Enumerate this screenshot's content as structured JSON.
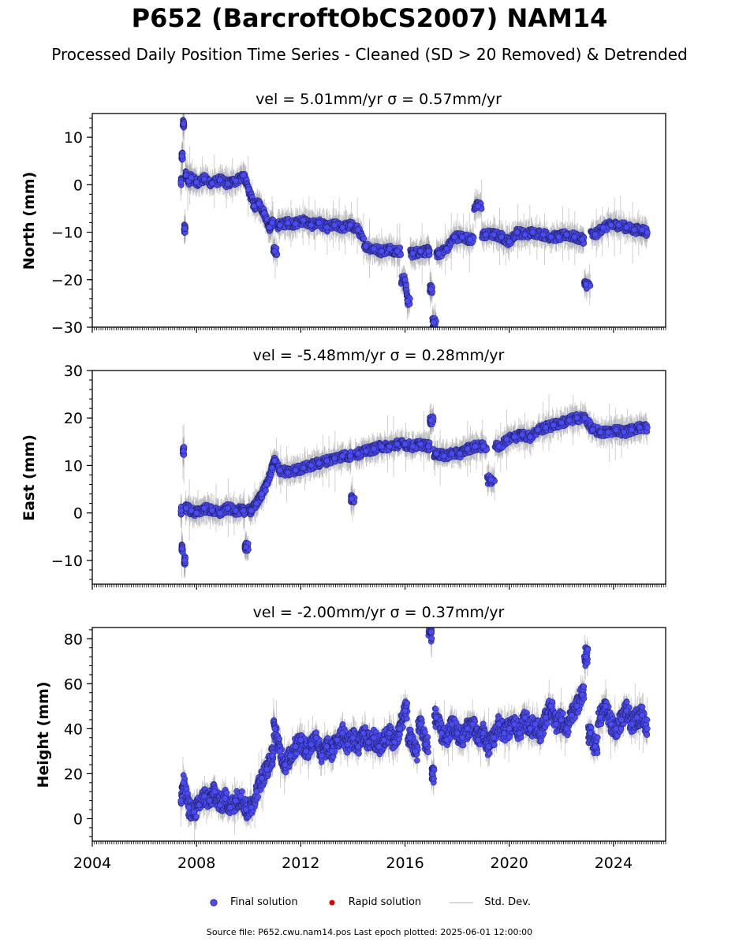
{
  "title": "P652 (BarcroftObCS2007) NAM14",
  "subtitle": "Processed Daily Position Time Series - Cleaned (SD > 20 Removed) & Detrended",
  "legend": {
    "final": "Final solution",
    "rapid": "Rapid solution",
    "std": "Std. Dev."
  },
  "footer": "Source file: P652.cwu.nam14.pos  Last epoch plotted: 2025-06-01 12:00:00",
  "colors": {
    "final": "#4b4bf5",
    "final_edge": "#1a1a55",
    "rapid": "#e00000",
    "std": "#aaaaaa"
  },
  "chart_data": [
    {
      "type": "scatter",
      "title": "vel = 5.01mm/yr   σ = 0.57mm/yr",
      "ylabel": "North (mm)",
      "xlim": [
        2004.0,
        2026.0
      ],
      "ylim": [
        -30,
        15
      ],
      "yticks": [
        -30,
        -20,
        -10,
        0,
        10
      ],
      "ytick_labels": [
        "−30",
        "−20",
        "−10",
        "0",
        "10"
      ],
      "series": [
        {
          "name": "Final solution",
          "x": [
            2007.4,
            2007.45,
            2007.5,
            2007.55,
            2007.6,
            2007.7,
            2007.8,
            2008.0,
            2008.3,
            2008.6,
            2008.9,
            2009.2,
            2009.5,
            2009.8,
            2010.0,
            2010.2,
            2010.4,
            2010.6,
            2010.8,
            2010.9,
            2011.0,
            2011.2,
            2011.5,
            2011.8,
            2012.1,
            2012.4,
            2012.7,
            2013.0,
            2013.3,
            2013.6,
            2013.9,
            2014.2,
            2014.5,
            2014.8,
            2015.1,
            2015.4,
            2015.7,
            2016.0,
            2016.1,
            2016.3,
            2016.6,
            2016.9,
            2017.0,
            2017.1,
            2017.3,
            2017.6,
            2017.9,
            2018.2,
            2018.5,
            2018.8,
            2019.1,
            2019.4,
            2019.7,
            2020.0,
            2020.3,
            2020.6,
            2020.9,
            2021.3,
            2021.6,
            2021.9,
            2022.2,
            2022.5,
            2022.8,
            2022.95,
            2023.3,
            2023.6,
            2023.9,
            2024.2,
            2024.5,
            2024.8,
            2025.1,
            2025.3
          ],
          "y": [
            0.5,
            6.0,
            12.8,
            -9.2,
            2.0,
            0.8,
            1.5,
            0.5,
            1.2,
            0.3,
            1.0,
            0.2,
            0.8,
            2.0,
            -1.0,
            -4.5,
            -4.0,
            -6.0,
            -9.0,
            -8.0,
            -14.0,
            -8.5,
            -8.0,
            -8.2,
            -7.5,
            -8.5,
            -8.0,
            -9.0,
            -8.5,
            -9.0,
            -8.5,
            -9.5,
            -13.0,
            -13.5,
            -14.0,
            -13.5,
            -14.0,
            -20.0,
            -24.5,
            -14.5,
            -14.0,
            -14.0,
            -22.0,
            -29.0,
            -14.5,
            -13.5,
            -11.0,
            -11.0,
            -11.5,
            -4.5,
            -10.5,
            -10.5,
            -11.0,
            -12.0,
            -10.0,
            -10.5,
            -10.0,
            -10.5,
            -11.0,
            -11.0,
            -10.5,
            -11.0,
            -11.5,
            -21.0,
            -10.5,
            -9.0,
            -8.5,
            -8.5,
            -9.0,
            -9.5,
            -9.5,
            -10.0
          ],
          "value_note": "representative samples of the daily series read from the plot"
        }
      ]
    },
    {
      "type": "scatter",
      "title": "vel = -5.48mm/yr   σ = 0.28mm/yr",
      "ylabel": "East (mm)",
      "xlim": [
        2004.0,
        2026.0
      ],
      "ylim": [
        -15,
        30
      ],
      "yticks": [
        -10,
        0,
        10,
        20,
        30
      ],
      "ytick_labels": [
        "−10",
        "0",
        "10",
        "20",
        "30"
      ],
      "series": [
        {
          "name": "Final solution",
          "x": [
            2007.4,
            2007.45,
            2007.5,
            2007.55,
            2007.6,
            2007.8,
            2008.0,
            2008.3,
            2008.6,
            2008.9,
            2009.2,
            2009.5,
            2009.8,
            2009.9,
            2010.1,
            2010.3,
            2010.5,
            2010.7,
            2010.9,
            2011.0,
            2011.2,
            2011.5,
            2011.8,
            2012.1,
            2012.4,
            2012.7,
            2013.0,
            2013.3,
            2013.6,
            2013.9,
            2013.95,
            2014.2,
            2014.5,
            2014.8,
            2015.1,
            2015.4,
            2015.7,
            2016.0,
            2016.3,
            2016.6,
            2016.9,
            2017.0,
            2017.2,
            2017.5,
            2017.8,
            2018.1,
            2018.4,
            2018.7,
            2019.0,
            2019.3,
            2019.6,
            2019.9,
            2020.2,
            2020.5,
            2020.8,
            2021.1,
            2021.4,
            2021.7,
            2022.0,
            2022.3,
            2022.6,
            2022.9,
            2023.2,
            2023.5,
            2023.8,
            2024.1,
            2024.4,
            2024.7,
            2025.0,
            2025.3
          ],
          "y": [
            0.5,
            -7.5,
            13.0,
            -10.0,
            1.0,
            0.5,
            0.0,
            1.0,
            0.5,
            0.0,
            1.0,
            0.5,
            0.5,
            -7.2,
            0.5,
            2.0,
            4.0,
            6.0,
            9.5,
            11.0,
            9.0,
            8.5,
            9.0,
            9.5,
            10.0,
            10.5,
            11.0,
            11.5,
            12.0,
            12.0,
            3.0,
            12.5,
            13.0,
            13.5,
            14.0,
            14.0,
            14.5,
            14.5,
            14.0,
            14.5,
            14.0,
            19.5,
            12.5,
            12.0,
            12.5,
            12.5,
            13.5,
            14.0,
            14.0,
            7.0,
            14.0,
            15.5,
            16.0,
            16.5,
            16.0,
            17.5,
            18.0,
            18.5,
            19.0,
            19.5,
            20.0,
            20.0,
            17.5,
            17.0,
            17.0,
            17.5,
            17.0,
            17.5,
            18.0,
            18.0
          ],
          "value_note": "representative samples of the daily series read from the plot"
        }
      ]
    },
    {
      "type": "scatter",
      "title": "vel = -2.00mm/yr   σ = 0.37mm/yr",
      "ylabel": "Height (mm)",
      "xlim": [
        2004.0,
        2026.0
      ],
      "ylim": [
        -10,
        85
      ],
      "yticks": [
        0,
        20,
        40,
        60,
        80
      ],
      "ytick_labels": [
        "0",
        "20",
        "40",
        "60",
        "80"
      ],
      "xticks": [
        2004,
        2008,
        2012,
        2016,
        2020,
        2024
      ],
      "xtick_labels": [
        "2004",
        "2008",
        "2012",
        "2016",
        "2020",
        "2024"
      ],
      "series": [
        {
          "name": "Final solution",
          "x": [
            2007.4,
            2007.5,
            2007.7,
            2007.9,
            2008.1,
            2008.3,
            2008.5,
            2008.7,
            2008.9,
            2009.1,
            2009.3,
            2009.5,
            2009.7,
            2009.9,
            2010.1,
            2010.3,
            2010.5,
            2010.7,
            2010.9,
            2011.0,
            2011.2,
            2011.4,
            2011.6,
            2011.8,
            2012.0,
            2012.2,
            2012.4,
            2012.6,
            2012.8,
            2013.0,
            2013.2,
            2013.4,
            2013.6,
            2013.8,
            2014.0,
            2014.2,
            2014.4,
            2014.6,
            2014.8,
            2015.0,
            2015.2,
            2015.4,
            2015.6,
            2015.8,
            2016.0,
            2016.2,
            2016.4,
            2016.6,
            2016.8,
            2017.0,
            2017.05,
            2017.2,
            2017.4,
            2017.6,
            2017.8,
            2018.0,
            2018.2,
            2018.4,
            2018.6,
            2018.8,
            2019.0,
            2019.2,
            2019.4,
            2019.6,
            2019.8,
            2020.0,
            2020.2,
            2020.4,
            2020.6,
            2020.8,
            2021.0,
            2021.2,
            2021.4,
            2021.6,
            2021.8,
            2022.0,
            2022.2,
            2022.4,
            2022.6,
            2022.8,
            2022.95,
            2023.1,
            2023.3,
            2023.5,
            2023.7,
            2023.9,
            2024.1,
            2024.3,
            2024.5,
            2024.7,
            2024.9,
            2025.1,
            2025.3
          ],
          "y": [
            8,
            16,
            5,
            3,
            6,
            10,
            8,
            12,
            6,
            9,
            5,
            8,
            10,
            4,
            5,
            12,
            18,
            22,
            28,
            40,
            30,
            24,
            28,
            32,
            35,
            30,
            33,
            36,
            28,
            32,
            30,
            35,
            38,
            33,
            36,
            32,
            38,
            34,
            36,
            32,
            35,
            38,
            34,
            40,
            48,
            36,
            30,
            42,
            33,
            83,
            20,
            45,
            38,
            35,
            42,
            38,
            36,
            40,
            42,
            35,
            38,
            32,
            36,
            42,
            38,
            40,
            42,
            38,
            45,
            40,
            42,
            38,
            45,
            50,
            42,
            44,
            40,
            46,
            50,
            55,
            72,
            38,
            32,
            45,
            50,
            42,
            40,
            44,
            48,
            42,
            45,
            46,
            40
          ],
          "value_note": "representative samples of the daily series read from the plot"
        }
      ]
    }
  ]
}
